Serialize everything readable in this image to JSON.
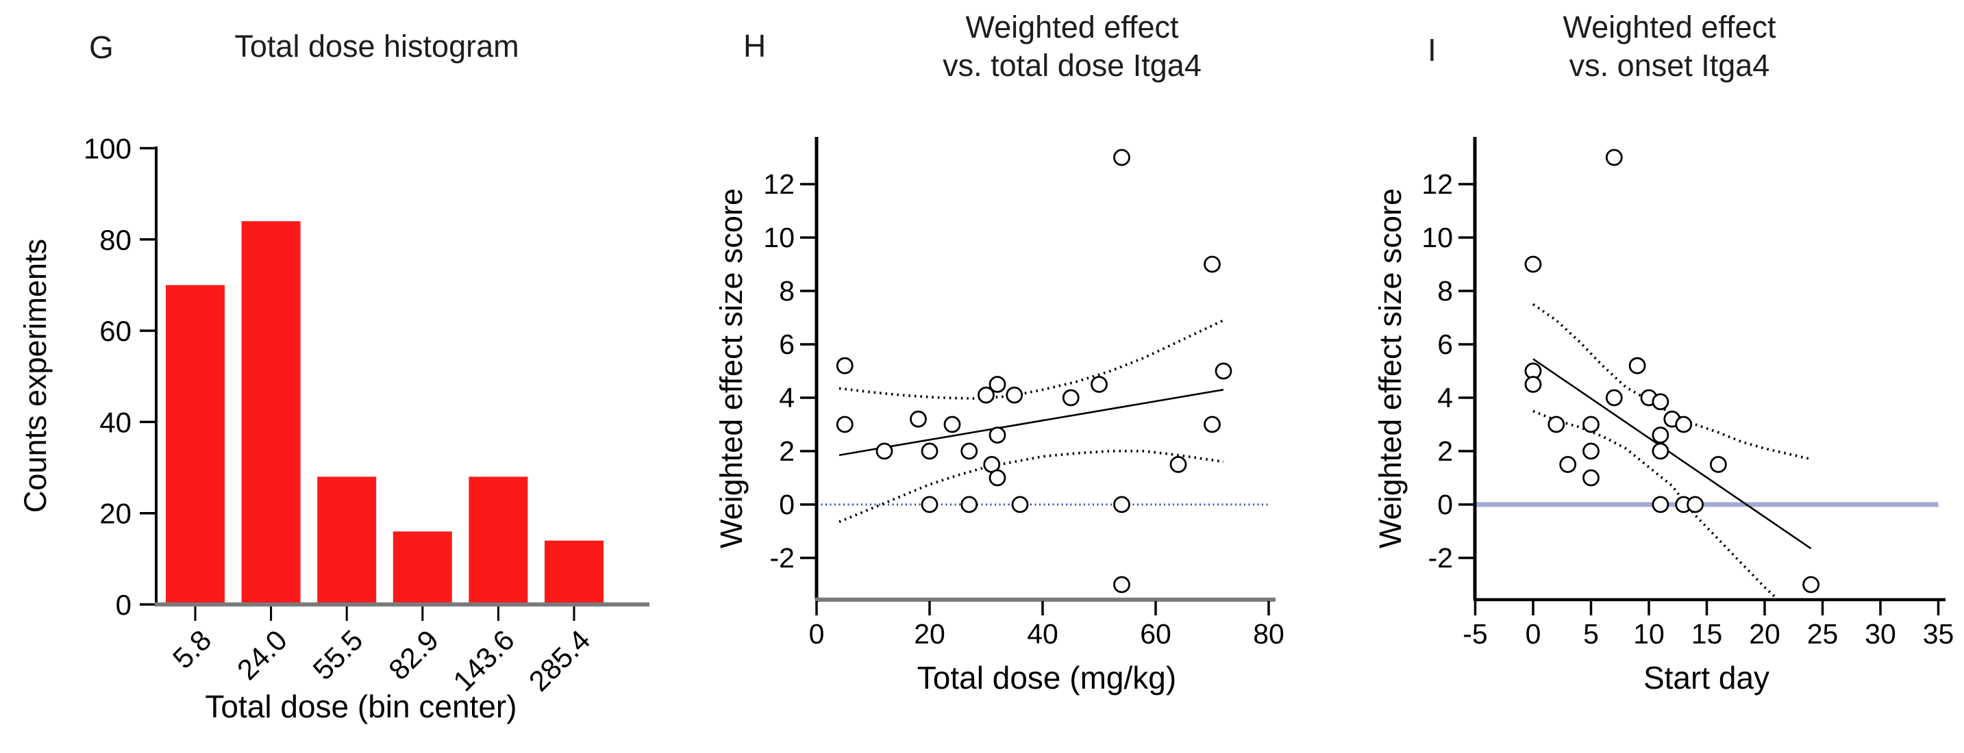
{
  "figure": {
    "background": "#ffffff"
  },
  "chart_data": [
    {
      "id": "G",
      "panel_letter": "G",
      "type": "bar",
      "title": "Total dose histogram",
      "xlabel": "Total dose (bin center)",
      "ylabel": "Counts experiments",
      "categories": [
        "5.8",
        "24.0",
        "55.5",
        "82.9",
        "143.6",
        "285.4"
      ],
      "values": [
        70,
        84,
        28,
        16,
        28,
        14
      ],
      "yticks": [
        0,
        20,
        40,
        60,
        80,
        100
      ],
      "ylim": [
        0,
        100
      ],
      "grid": false,
      "legend": "none",
      "bar_color": "#fa1a1a",
      "x_axis_color": "#7a7a7a",
      "y_axis_color": "#000000"
    },
    {
      "id": "H",
      "panel_letter": "H",
      "type": "scatter",
      "title": "Weighted effect vs. total dose Itga4",
      "title_line1": "Weighted effect",
      "title_line2": "vs. total dose Itga4",
      "xlabel": "Total dose (mg/kg)",
      "ylabel": "Weighted effect size score",
      "xticks": [
        0,
        20,
        40,
        60,
        80
      ],
      "yticks": [
        -2,
        0,
        2,
        4,
        6,
        8,
        10,
        12
      ],
      "xlim": [
        0,
        81
      ],
      "ylim": [
        -3.6,
        13.8
      ],
      "grid": false,
      "legend": "none",
      "point_style": "open-circle",
      "point_color": "#000000",
      "points": [
        [
          5,
          5.2
        ],
        [
          5,
          3
        ],
        [
          12,
          2
        ],
        [
          18,
          3.2
        ],
        [
          20,
          2
        ],
        [
          20,
          0
        ],
        [
          24,
          3
        ],
        [
          27,
          2
        ],
        [
          27,
          0
        ],
        [
          30,
          4.1
        ],
        [
          31,
          1.5
        ],
        [
          32,
          4.5
        ],
        [
          32,
          2.6
        ],
        [
          32,
          1
        ],
        [
          35,
          4.1
        ],
        [
          36,
          0
        ],
        [
          45,
          4
        ],
        [
          50,
          4.5
        ],
        [
          54,
          13
        ],
        [
          54,
          0
        ],
        [
          54,
          -3
        ],
        [
          64,
          1.5
        ],
        [
          70,
          9
        ],
        [
          70,
          3
        ],
        [
          72,
          5
        ]
      ],
      "regression_line": [
        [
          4,
          1.85
        ],
        [
          72,
          4.3
        ]
      ],
      "ci_upper": [
        [
          4,
          4.35
        ],
        [
          10,
          4.2
        ],
        [
          16,
          4.08
        ],
        [
          22,
          4.0
        ],
        [
          28,
          3.97
        ],
        [
          34,
          4.05
        ],
        [
          40,
          4.3
        ],
        [
          46,
          4.6
        ],
        [
          52,
          5.0
        ],
        [
          58,
          5.5
        ],
        [
          65,
          6.2
        ],
        [
          72,
          6.9
        ]
      ],
      "ci_lower": [
        [
          4,
          -0.65
        ],
        [
          8,
          -0.3
        ],
        [
          12,
          0.05
        ],
        [
          16,
          0.4
        ],
        [
          20,
          0.75
        ],
        [
          25,
          1.1
        ],
        [
          30,
          1.4
        ],
        [
          35,
          1.6
        ],
        [
          40,
          1.8
        ],
        [
          46,
          1.92
        ],
        [
          52,
          2.0
        ],
        [
          58,
          2.0
        ],
        [
          64,
          1.85
        ],
        [
          72,
          1.6
        ]
      ],
      "ci_color": "#000000",
      "zero_line": {
        "y": 0,
        "style": "dotted",
        "color": "#2d4fc0",
        "x_range": [
          0,
          80
        ]
      },
      "x_axis_color": "#7a7a7a",
      "y_axis_color": "#000000"
    },
    {
      "id": "I",
      "panel_letter": "I",
      "type": "scatter",
      "title": "Weighted effect vs. onset Itga4",
      "title_line1": "Weighted effect",
      "title_line2": "vs. onset Itga4",
      "xlabel": "Start day",
      "ylabel": "Weighted effect size score",
      "xticks": [
        -5,
        0,
        5,
        10,
        15,
        20,
        25,
        30,
        35
      ],
      "yticks": [
        -2,
        0,
        2,
        4,
        6,
        8,
        10,
        12
      ],
      "xlim": [
        -5,
        35
      ],
      "ylim": [
        -3.6,
        13.8
      ],
      "grid": false,
      "legend": "none",
      "point_style": "open-circle",
      "point_color": "#000000",
      "points": [
        [
          0,
          9
        ],
        [
          0,
          5
        ],
        [
          0,
          4.5
        ],
        [
          2,
          3
        ],
        [
          3,
          1.5
        ],
        [
          5,
          3
        ],
        [
          5,
          2
        ],
        [
          5,
          1
        ],
        [
          7,
          13
        ],
        [
          7,
          4
        ],
        [
          9,
          5.2
        ],
        [
          10,
          4
        ],
        [
          11,
          3.85
        ],
        [
          11,
          2.6
        ],
        [
          11,
          2
        ],
        [
          11,
          0
        ],
        [
          12,
          3.2
        ],
        [
          13,
          3
        ],
        [
          13,
          0
        ],
        [
          14,
          0
        ],
        [
          16,
          1.5
        ],
        [
          24,
          -3
        ]
      ],
      "regression_line": [
        [
          0,
          5.45
        ],
        [
          24,
          -1.65
        ]
      ],
      "ci_upper": [
        [
          0,
          7.5
        ],
        [
          2,
          6.9
        ],
        [
          4,
          6.1
        ],
        [
          6,
          5.2
        ],
        [
          8,
          4.4
        ],
        [
          10,
          3.9
        ],
        [
          12,
          3.4
        ],
        [
          14,
          3.0
        ],
        [
          16,
          2.7
        ],
        [
          18,
          2.35
        ],
        [
          20,
          2.1
        ],
        [
          22,
          1.9
        ],
        [
          24,
          1.7
        ]
      ],
      "ci_lower": [
        [
          0,
          3.5
        ],
        [
          2,
          3.15
        ],
        [
          4,
          2.9
        ],
        [
          6,
          2.55
        ],
        [
          8,
          2.1
        ],
        [
          10,
          1.4
        ],
        [
          12,
          0.7
        ],
        [
          14,
          -0.4
        ],
        [
          16,
          -1.3
        ],
        [
          18,
          -2.2
        ],
        [
          20,
          -3.1
        ],
        [
          21,
          -3.5
        ]
      ],
      "ci_color": "#000000",
      "zero_line": {
        "y": 0,
        "style": "solid",
        "color": "#a0aad2",
        "x_range": [
          -5,
          35
        ]
      },
      "x_axis_color": "#000000",
      "y_axis_color": "#000000"
    }
  ]
}
